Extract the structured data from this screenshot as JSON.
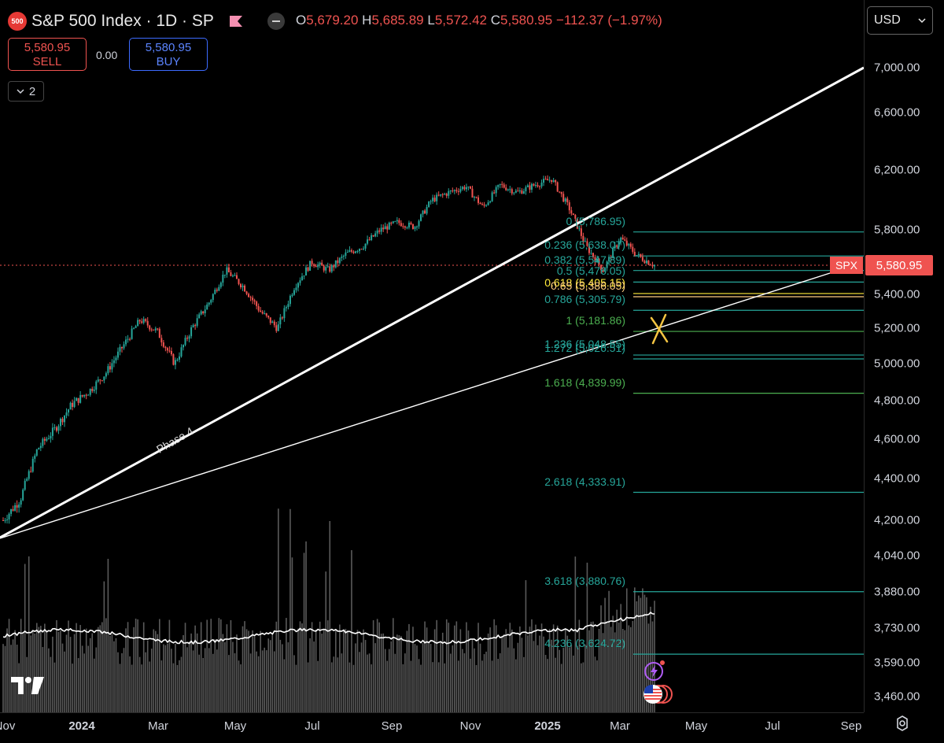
{
  "header": {
    "logo_text": "500",
    "title": "S&P 500 Index · 1D · SP",
    "ohlc": {
      "o_label": "O",
      "o": "5,679.20",
      "h_label": "H",
      "h": "5,685.89",
      "l_label": "L",
      "l": "5,572.42",
      "c_label": "C",
      "c": "5,580.95",
      "change": "−112.37 (−1.97%)"
    }
  },
  "trade": {
    "sell_price": "5,580.95",
    "sell_label": "SELL",
    "spread": "0.00",
    "buy_price": "5,580.95",
    "buy_label": "BUY"
  },
  "collapse_button": {
    "count": "2"
  },
  "currency": {
    "value": "USD"
  },
  "price_axis": [
    "7,000.00",
    "6,600.00",
    "6,200.00",
    "5,800.00",
    "5,400.00",
    "5,200.00",
    "5,000.00",
    "4,800.00",
    "4,600.00",
    "4,400.00",
    "4,200.00",
    "4,040.00",
    "3,880.00",
    "3,730.00",
    "3,590.00",
    "3,460.00"
  ],
  "time_axis": [
    "Nov",
    "2024",
    "Mar",
    "May",
    "Jul",
    "Sep",
    "Nov",
    "2025",
    "Mar",
    "May",
    "Jul",
    "Sep"
  ],
  "last_price": {
    "symbol": "SPX",
    "value": "5,580.95"
  },
  "drawing_label": "Phase 4",
  "fib_levels": [
    {
      "ratio": "0",
      "price": "5,786.95",
      "text": "0 (5,786.95)",
      "color": "#26a69a"
    },
    {
      "ratio": "0.236",
      "price": "5,638.07",
      "text": "0.236 (5,638.07)",
      "color": "#26a69a"
    },
    {
      "ratio": "0.382",
      "price": "5,547.89",
      "text": "0.382 (5,547.89)",
      "color": "#26a69a"
    },
    {
      "ratio": "0.5",
      "price": "5,476.05",
      "text": "0.5 (5,476.05)",
      "color": "#26a69a"
    },
    {
      "ratio": "0.618",
      "price": "5,405.15",
      "text": "0.618 (5,405.15)",
      "color": "#ffeb3b"
    },
    {
      "ratio": "0.65",
      "price": "5,386.05",
      "text": "0.65 (5,386.05)",
      "color": "#ffcc80"
    },
    {
      "ratio": "0.786",
      "price": "5,305.79",
      "text": "0.786 (5,305.79)",
      "color": "#26a69a"
    },
    {
      "ratio": "1",
      "price": "5,181.86",
      "text": "1 (5,181.86)",
      "color": "#4caf50"
    },
    {
      "ratio": "1.236",
      "price": "5,048.55",
      "text": "1.236 (5,048.55)",
      "color": "#26a69a"
    },
    {
      "ratio": "1.272",
      "price": "5,026.51",
      "text": "1.272 (5,026.51)",
      "color": "#26a69a"
    },
    {
      "ratio": "1.618",
      "price": "4,839.99",
      "text": "1.618 (4,839.99)",
      "color": "#4caf50"
    },
    {
      "ratio": "2.618",
      "price": "4,333.91",
      "text": "2.618 (4,333.91)",
      "color": "#26a69a"
    },
    {
      "ratio": "3.618",
      "price": "3,880.76",
      "text": "3.618 (3,880.76)",
      "color": "#26a69a"
    },
    {
      "ratio": "4.236",
      "price": "3,624.72",
      "text": "4.236 (3,624.72)",
      "color": "#26a69a"
    }
  ],
  "chart_data": {
    "type": "candlestick",
    "symbol": "SPX",
    "interval": "1D",
    "series": [
      {
        "name": "SPX",
        "values": [
          4200,
          4300,
          4550,
          4650,
          4780,
          4850,
          4950,
          5100,
          5250,
          5180,
          5000,
          5200,
          5350,
          5550,
          5450,
          5300,
          5200,
          5450,
          5600,
          5550,
          5650,
          5700,
          5800,
          5850,
          5820,
          6000,
          6050,
          6090,
          5950,
          6100,
          6050,
          6100,
          6140,
          5950,
          5700,
          5550,
          5750,
          5640,
          5580.95
        ]
      }
    ],
    "last_close": 5580.95,
    "colors": {
      "up": "#26a69a",
      "down": "#ef5350",
      "background": "#000000"
    }
  }
}
